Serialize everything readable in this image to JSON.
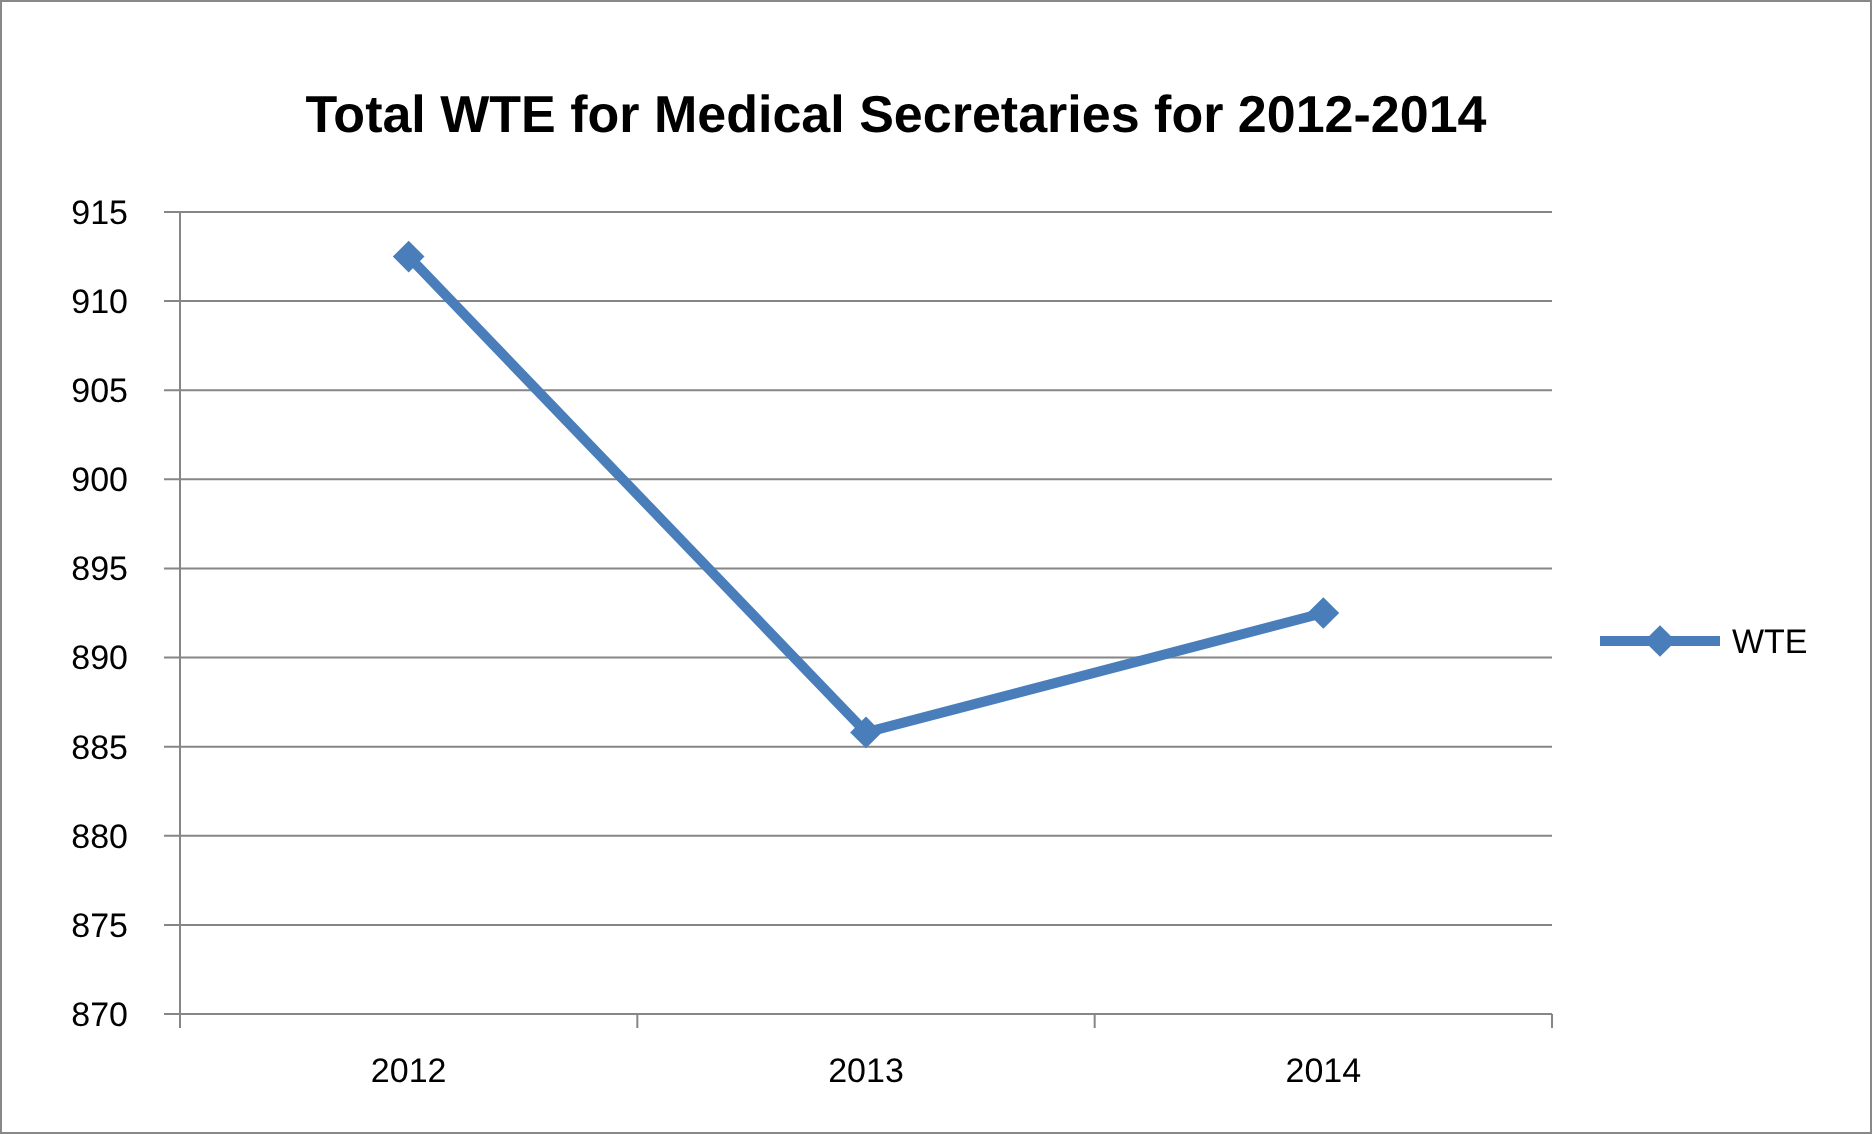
{
  "chart_data": {
    "type": "line",
    "title": "Total WTE for Medical Secretaries for 2012-2014",
    "categories": [
      "2012",
      "2013",
      "2014"
    ],
    "series": [
      {
        "name": "WTE",
        "color": "#4a7ebb",
        "values": [
          912.5,
          885.8,
          892.5
        ]
      }
    ],
    "ylim": [
      870,
      915
    ],
    "yticks": [
      870,
      875,
      880,
      885,
      890,
      895,
      900,
      905,
      910,
      915
    ],
    "grid": "y",
    "legend": "right",
    "marker": "diamond",
    "line_style": "solid"
  }
}
